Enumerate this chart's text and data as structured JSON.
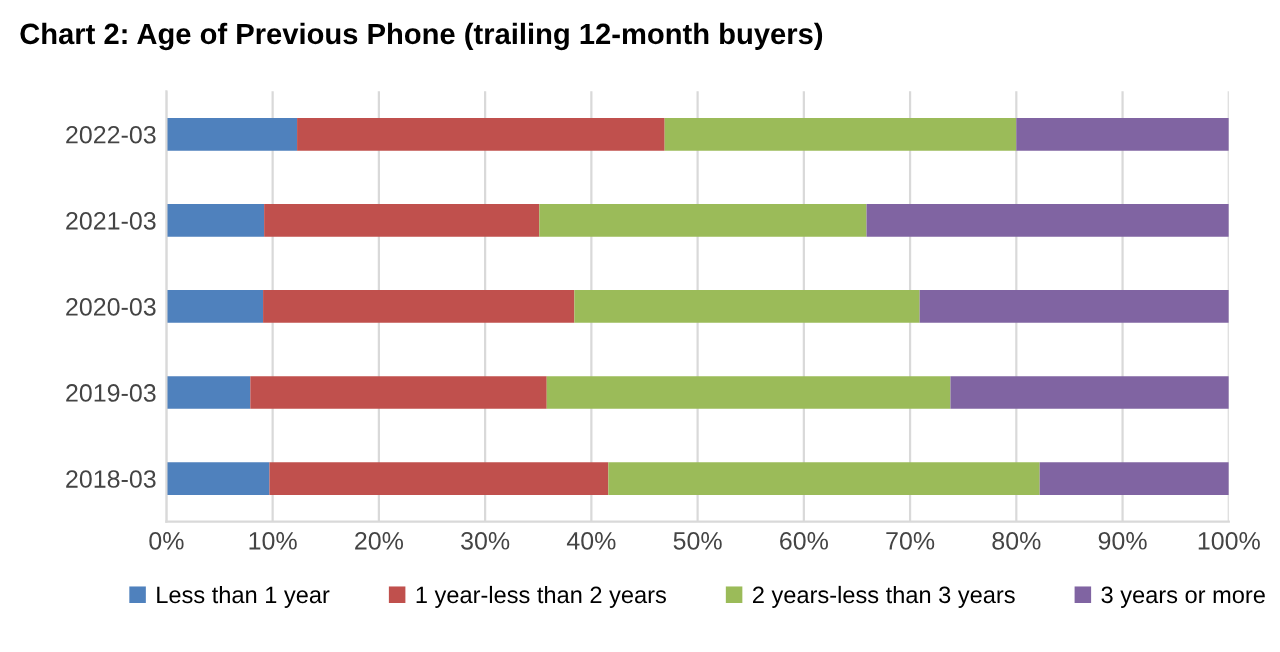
{
  "chart_data": {
    "type": "bar",
    "orientation": "horizontal",
    "stacked": true,
    "title": "Chart 2: Age of Previous Phone (trailing 12-month buyers)",
    "categories": [
      "2022-03",
      "2021-03",
      "2020-03",
      "2019-03",
      "2018-03"
    ],
    "series": [
      {
        "name": "Less than 1 year",
        "color": "#4f81bd",
        "values": [
          12.3,
          9.2,
          9.1,
          7.9,
          9.7
        ]
      },
      {
        "name": "1 year-less than 2 years",
        "color": "#c0504d",
        "values": [
          34.6,
          25.9,
          29.3,
          27.9,
          31.9
        ]
      },
      {
        "name": "2 years-less than 3 years",
        "color": "#9bbb59",
        "values": [
          33.1,
          30.8,
          32.5,
          38.0,
          40.6
        ]
      },
      {
        "name": "3 years or more",
        "color": "#8064a2",
        "values": [
          20.0,
          34.1,
          29.1,
          26.2,
          17.8
        ]
      }
    ],
    "xlim": [
      0,
      100
    ],
    "xticks": [
      {
        "value": 0,
        "label": "0%"
      },
      {
        "value": 10,
        "label": "10%"
      },
      {
        "value": 20,
        "label": "20%"
      },
      {
        "value": 30,
        "label": "30%"
      },
      {
        "value": 40,
        "label": "40%"
      },
      {
        "value": 50,
        "label": "50%"
      },
      {
        "value": 60,
        "label": "60%"
      },
      {
        "value": 70,
        "label": "70%"
      },
      {
        "value": 80,
        "label": "80%"
      },
      {
        "value": 90,
        "label": "90%"
      },
      {
        "value": 100,
        "label": "100%"
      }
    ],
    "grid": "x",
    "legend": "bottom"
  }
}
